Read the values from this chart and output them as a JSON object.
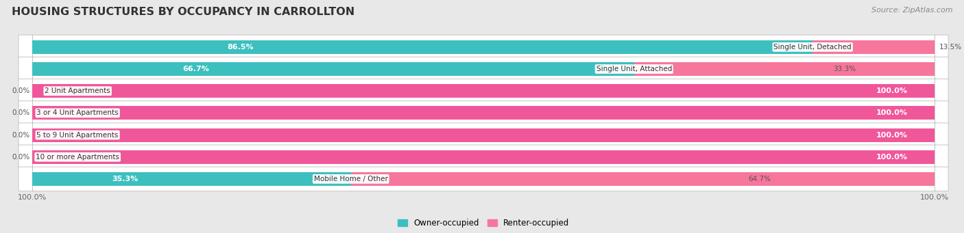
{
  "title": "HOUSING STRUCTURES BY OCCUPANCY IN CARROLLTON",
  "source": "Source: ZipAtlas.com",
  "categories": [
    "Single Unit, Detached",
    "Single Unit, Attached",
    "2 Unit Apartments",
    "3 or 4 Unit Apartments",
    "5 to 9 Unit Apartments",
    "10 or more Apartments",
    "Mobile Home / Other"
  ],
  "owner_values": [
    86.5,
    66.7,
    0.0,
    0.0,
    0.0,
    0.0,
    35.3
  ],
  "renter_values": [
    13.5,
    33.3,
    100.0,
    100.0,
    100.0,
    100.0,
    64.7
  ],
  "owner_color": "#3DBFBF",
  "renter_color": "#F7769C",
  "renter_color_full": "#F0579A",
  "owner_label": "Owner-occupied",
  "renter_label": "Renter-occupied",
  "background_color": "#e8e8e8",
  "row_bg_color": "#f5f5f5",
  "title_fontsize": 11.5,
  "source_fontsize": 8,
  "bar_height": 0.62,
  "xlim_left": -2,
  "xlim_right": 102
}
